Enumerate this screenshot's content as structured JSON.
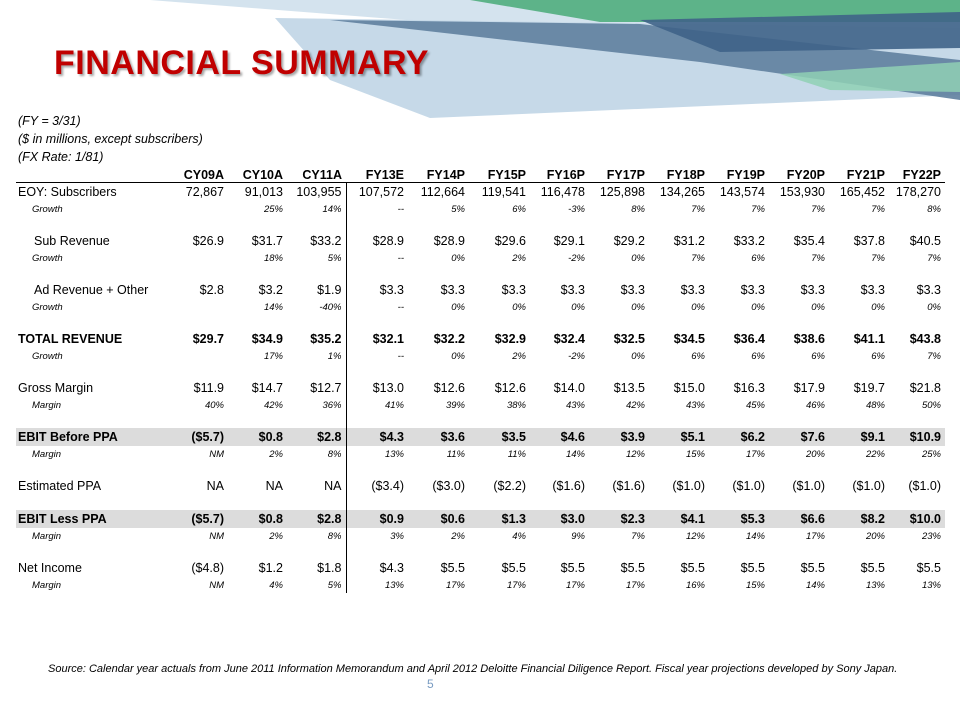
{
  "title": "FINANCIAL SUMMARY",
  "notes": [
    "(FY = 3/31)",
    "($ in millions, except subscribers)",
    "(FX Rate: 1/81)"
  ],
  "columns": [
    "CY09A",
    "CY10A",
    "CY11A",
    "FY13E",
    "FY14P",
    "FY15P",
    "FY16P",
    "FY17P",
    "FY18P",
    "FY19P",
    "FY20P",
    "FY21P",
    "FY22P"
  ],
  "rows": [
    {
      "type": "main",
      "label": "EOY: Subscribers",
      "values": [
        "72,867",
        "91,013",
        "103,955",
        "107,572",
        "112,664",
        "119,541",
        "116,478",
        "125,898",
        "134,265",
        "143,574",
        "153,930",
        "165,452",
        "178,270"
      ]
    },
    {
      "type": "sub",
      "label": "Growth",
      "values": [
        "",
        "25%",
        "14%",
        "--",
        "5%",
        "6%",
        "-3%",
        "8%",
        "7%",
        "7%",
        "7%",
        "7%",
        "8%"
      ]
    },
    {
      "type": "space"
    },
    {
      "type": "main",
      "indent": true,
      "label": "Sub Revenue",
      "values": [
        "$26.9",
        "$31.7",
        "$33.2",
        "$28.9",
        "$28.9",
        "$29.6",
        "$29.1",
        "$29.2",
        "$31.2",
        "$33.2",
        "$35.4",
        "$37.8",
        "$40.5"
      ]
    },
    {
      "type": "sub",
      "label": "Growth",
      "values": [
        "",
        "18%",
        "5%",
        "--",
        "0%",
        "2%",
        "-2%",
        "0%",
        "7%",
        "6%",
        "7%",
        "7%",
        "7%"
      ]
    },
    {
      "type": "space"
    },
    {
      "type": "main",
      "indent": true,
      "label": "Ad Revenue + Other",
      "values": [
        "$2.8",
        "$3.2",
        "$1.9",
        "$3.3",
        "$3.3",
        "$3.3",
        "$3.3",
        "$3.3",
        "$3.3",
        "$3.3",
        "$3.3",
        "$3.3",
        "$3.3"
      ]
    },
    {
      "type": "sub",
      "label": "Growth",
      "values": [
        "",
        "14%",
        "-40%",
        "--",
        "0%",
        "0%",
        "0%",
        "0%",
        "0%",
        "0%",
        "0%",
        "0%",
        "0%"
      ]
    },
    {
      "type": "space"
    },
    {
      "type": "main",
      "bold": true,
      "label": "TOTAL REVENUE",
      "values": [
        "$29.7",
        "$34.9",
        "$35.2",
        "$32.1",
        "$32.2",
        "$32.9",
        "$32.4",
        "$32.5",
        "$34.5",
        "$36.4",
        "$38.6",
        "$41.1",
        "$43.8"
      ]
    },
    {
      "type": "sub",
      "label": "Growth",
      "values": [
        "",
        "17%",
        "1%",
        "--",
        "0%",
        "2%",
        "-2%",
        "0%",
        "6%",
        "6%",
        "6%",
        "6%",
        "7%"
      ]
    },
    {
      "type": "space"
    },
    {
      "type": "main",
      "label": "Gross Margin",
      "values": [
        "$11.9",
        "$14.7",
        "$12.7",
        "$13.0",
        "$12.6",
        "$12.6",
        "$14.0",
        "$13.5",
        "$15.0",
        "$16.3",
        "$17.9",
        "$19.7",
        "$21.8"
      ]
    },
    {
      "type": "sub",
      "label": "Margin",
      "values": [
        "40%",
        "42%",
        "36%",
        "41%",
        "39%",
        "38%",
        "43%",
        "42%",
        "43%",
        "45%",
        "46%",
        "48%",
        "50%"
      ]
    },
    {
      "type": "space"
    },
    {
      "type": "main",
      "bold": true,
      "shade": true,
      "label": "EBIT Before PPA",
      "values": [
        "($5.7)",
        "$0.8",
        "$2.8",
        "$4.3",
        "$3.6",
        "$3.5",
        "$4.6",
        "$3.9",
        "$5.1",
        "$6.2",
        "$7.6",
        "$9.1",
        "$10.9"
      ]
    },
    {
      "type": "sub",
      "label": "Margin",
      "values": [
        "NM",
        "2%",
        "8%",
        "13%",
        "11%",
        "11%",
        "14%",
        "12%",
        "15%",
        "17%",
        "20%",
        "22%",
        "25%"
      ]
    },
    {
      "type": "space"
    },
    {
      "type": "main",
      "label": "Estimated PPA",
      "values": [
        "NA",
        "NA",
        "NA",
        "($3.4)",
        "($3.0)",
        "($2.2)",
        "($1.6)",
        "($1.6)",
        "($1.0)",
        "($1.0)",
        "($1.0)",
        "($1.0)",
        "($1.0)"
      ]
    },
    {
      "type": "space"
    },
    {
      "type": "main",
      "bold": true,
      "shade": true,
      "label": "EBIT Less PPA",
      "values": [
        "($5.7)",
        "$0.8",
        "$2.8",
        "$0.9",
        "$0.6",
        "$1.3",
        "$3.0",
        "$2.3",
        "$4.1",
        "$5.3",
        "$6.6",
        "$8.2",
        "$10.0"
      ]
    },
    {
      "type": "sub",
      "label": "Margin",
      "values": [
        "NM",
        "2%",
        "8%",
        "3%",
        "2%",
        "4%",
        "9%",
        "7%",
        "12%",
        "14%",
        "17%",
        "20%",
        "23%"
      ]
    },
    {
      "type": "space"
    },
    {
      "type": "main",
      "label": "Net Income",
      "values": [
        "($4.8)",
        "$1.2",
        "$1.8",
        "$4.3",
        "$5.5",
        "$5.5",
        "$5.5",
        "$5.5",
        "$5.5",
        "$5.5",
        "$5.5",
        "$5.5",
        "$5.5"
      ]
    },
    {
      "type": "sub",
      "label": "Margin",
      "values": [
        "NM",
        "4%",
        "5%",
        "13%",
        "17%",
        "17%",
        "17%",
        "17%",
        "16%",
        "15%",
        "14%",
        "13%",
        "13%"
      ]
    }
  ],
  "source": "Source: Calendar year actuals from June 2011 Information Memorandum and April 2012 Deloitte Financial Diligence Report. Fiscal year projections developed by Sony Japan.",
  "page_number": "5",
  "colors": {
    "title": "#c00000",
    "shade": "#dcdcdc",
    "banner_blue": "#4f6f93",
    "banner_light": "#b9cfe0",
    "banner_green": "#5fb38a",
    "page_number": "#7a9cc2"
  }
}
